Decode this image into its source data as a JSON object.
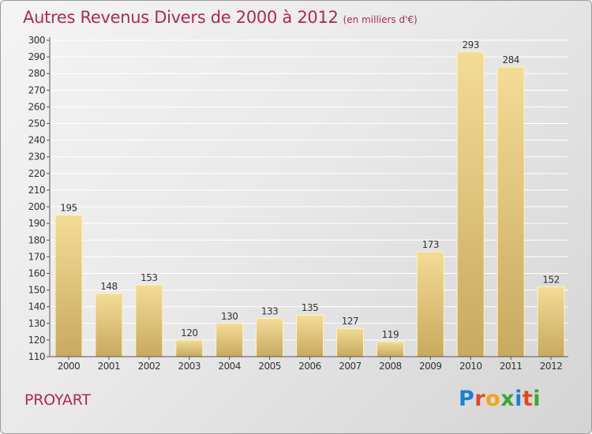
{
  "title": "Autres Revenus Divers de 2000 à 2012",
  "title_unit": "(en milliers d'€)",
  "place": "PROYART",
  "logo": "Proxiti",
  "colors": {
    "title": "#b0285a",
    "bar_light": "#f3dc96",
    "bar_dark": "#c8a95f"
  },
  "chart_data": {
    "type": "bar",
    "categories": [
      "2000",
      "2001",
      "2002",
      "2003",
      "2004",
      "2005",
      "2006",
      "2007",
      "2008",
      "2009",
      "2010",
      "2011",
      "2012"
    ],
    "values": [
      195,
      148,
      153,
      120,
      130,
      133,
      135,
      127,
      119,
      173,
      293,
      284,
      152
    ],
    "ylim": [
      110,
      300
    ],
    "yticks": [
      110,
      120,
      130,
      140,
      150,
      160,
      170,
      180,
      190,
      200,
      210,
      220,
      230,
      240,
      250,
      260,
      270,
      280,
      290,
      300
    ],
    "grid": true,
    "legend": "none"
  }
}
